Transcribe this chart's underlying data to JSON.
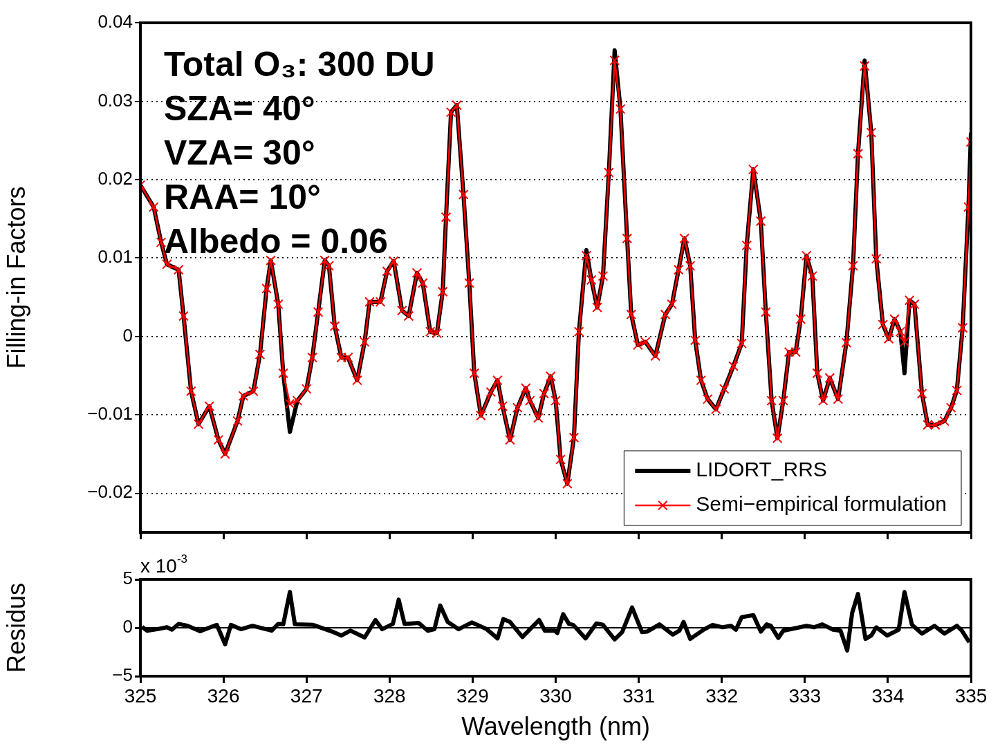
{
  "chart_data": [
    {
      "type": "line",
      "ylabel": "Filling-in Factors",
      "annotations": [
        "Total O₃: 300 DU",
        "SZA= 40°",
        "VZA= 30°",
        "RAA= 10°",
        "Albedo = 0.06"
      ],
      "x": [
        325.0,
        325.16,
        325.25,
        325.32,
        325.46,
        325.52,
        325.61,
        325.7,
        325.83,
        325.94,
        326.02,
        326.17,
        326.24,
        326.36,
        326.44,
        326.52,
        326.57,
        326.66,
        326.72,
        326.8,
        326.89,
        327.0,
        327.07,
        327.14,
        327.22,
        327.27,
        327.34,
        327.42,
        327.5,
        327.61,
        327.7,
        327.76,
        327.89,
        327.97,
        328.05,
        328.15,
        328.23,
        328.33,
        328.4,
        328.49,
        328.57,
        328.64,
        328.68,
        328.74,
        328.81,
        328.89,
        328.96,
        329.02,
        329.1,
        329.22,
        329.3,
        329.36,
        329.45,
        329.54,
        329.64,
        329.69,
        329.79,
        329.86,
        329.94,
        330.0,
        330.06,
        330.14,
        330.22,
        330.28,
        330.37,
        330.43,
        330.5,
        330.57,
        330.64,
        330.71,
        330.78,
        330.86,
        330.91,
        330.99,
        331.08,
        331.2,
        331.32,
        331.4,
        331.48,
        331.55,
        331.62,
        331.68,
        331.75,
        331.83,
        331.93,
        332.03,
        332.14,
        332.24,
        332.3,
        332.38,
        332.47,
        332.53,
        332.6,
        332.67,
        332.74,
        332.81,
        332.89,
        332.95,
        333.02,
        333.09,
        333.15,
        333.22,
        333.3,
        333.4,
        333.5,
        333.58,
        333.64,
        333.72,
        333.8,
        333.86,
        333.94,
        334.01,
        334.08,
        334.15,
        334.2,
        334.26,
        334.32,
        334.41,
        334.48,
        334.57,
        334.68,
        334.76,
        334.83,
        334.9,
        334.97,
        335.0
      ],
      "series": [
        {
          "name": "LIDORT_RRS",
          "color": "#000000",
          "marker": "none",
          "values": [
            0.0193,
            0.0165,
            0.012,
            0.0092,
            0.0085,
            0.0026,
            -0.007,
            -0.0112,
            -0.0089,
            -0.0132,
            -0.015,
            -0.0108,
            -0.0076,
            -0.007,
            -0.0023,
            0.0061,
            0.0097,
            0.0041,
            -0.0047,
            -0.0122,
            -0.0082,
            -0.0067,
            -0.0027,
            0.0031,
            0.0097,
            0.009,
            0.0013,
            -0.0027,
            -0.0027,
            -0.0056,
            -0.0007,
            0.0044,
            0.0044,
            0.0083,
            0.0096,
            0.0033,
            0.0026,
            0.0081,
            0.0068,
            0.0006,
            0.0004,
            0.0057,
            0.0152,
            0.0286,
            0.0295,
            0.0181,
            0.0068,
            -0.0047,
            -0.0101,
            -0.0071,
            -0.0056,
            -0.0089,
            -0.0132,
            -0.0091,
            -0.0066,
            -0.0082,
            -0.0104,
            -0.0073,
            -0.0051,
            -0.0082,
            -0.0157,
            -0.0188,
            -0.0129,
            0.0006,
            0.011,
            0.0072,
            0.0037,
            0.0077,
            0.0209,
            0.0365,
            0.029,
            0.0125,
            0.0028,
            -0.0011,
            -0.0007,
            -0.0025,
            0.0028,
            0.0041,
            0.0085,
            0.0125,
            0.009,
            -0.0005,
            -0.0056,
            -0.008,
            -0.0093,
            -0.0067,
            -0.0038,
            -0.0009,
            0.0116,
            0.0213,
            0.0147,
            0.0031,
            -0.0082,
            -0.013,
            -0.0082,
            -0.002,
            -0.002,
            0.0022,
            0.0103,
            0.0077,
            -0.0047,
            -0.0082,
            -0.0053,
            -0.008,
            -0.0008,
            0.009,
            0.0233,
            0.0352,
            0.026,
            0.0099,
            0.0015,
            -0.0003,
            0.0022,
            0.0006,
            -0.0047,
            0.0046,
            0.0041,
            -0.0073,
            -0.0113,
            -0.0113,
            -0.0108,
            -0.0091,
            -0.0069,
            0.0011,
            0.0165,
            0.026
          ]
        },
        {
          "name": "Semi−empirical formulation",
          "color": "#ff0000",
          "marker": "cross",
          "values": [
            0.0193,
            0.0165,
            0.012,
            0.0092,
            0.0085,
            0.0026,
            -0.007,
            -0.0112,
            -0.0089,
            -0.0132,
            -0.015,
            -0.0108,
            -0.0076,
            -0.007,
            -0.0023,
            0.0061,
            0.0097,
            0.0041,
            -0.0047,
            -0.0086,
            -0.0082,
            -0.0067,
            -0.0027,
            0.0031,
            0.0097,
            0.009,
            0.0013,
            -0.0027,
            -0.0027,
            -0.0056,
            -0.0007,
            0.0044,
            0.0044,
            0.0083,
            0.0096,
            0.0033,
            0.0026,
            0.0081,
            0.0068,
            0.0006,
            0.0004,
            0.0057,
            0.0152,
            0.0286,
            0.0295,
            0.0181,
            0.0068,
            -0.0047,
            -0.0101,
            -0.0071,
            -0.0056,
            -0.0089,
            -0.0132,
            -0.0091,
            -0.0066,
            -0.0082,
            -0.0104,
            -0.0073,
            -0.0051,
            -0.0082,
            -0.0157,
            -0.0188,
            -0.0129,
            0.0006,
            0.0103,
            0.0072,
            0.0037,
            0.0077,
            0.0209,
            0.0352,
            0.029,
            0.0125,
            0.0028,
            -0.0011,
            -0.0007,
            -0.0025,
            0.0028,
            0.0041,
            0.0085,
            0.0125,
            0.009,
            -0.0005,
            -0.0056,
            -0.008,
            -0.0093,
            -0.0067,
            -0.0038,
            -0.0009,
            0.0116,
            0.0213,
            0.0147,
            0.0031,
            -0.0082,
            -0.013,
            -0.0082,
            -0.002,
            -0.002,
            0.0022,
            0.0103,
            0.0077,
            -0.0047,
            -0.0082,
            -0.0053,
            -0.008,
            -0.0008,
            0.009,
            0.0233,
            0.0345,
            0.026,
            0.0099,
            0.0015,
            -0.0003,
            0.0022,
            0.0006,
            -0.0007,
            0.0046,
            0.0041,
            -0.0073,
            -0.0113,
            -0.0113,
            -0.0108,
            -0.0091,
            -0.0069,
            0.0011,
            0.0165,
            0.0248
          ]
        }
      ],
      "xlim": [
        325,
        335
      ],
      "xticks": [
        {
          "value": 325,
          "label": null
        },
        {
          "value": 326,
          "label": null
        },
        {
          "value": 327,
          "label": null
        },
        {
          "value": 328,
          "label": null
        },
        {
          "value": 329,
          "label": null
        },
        {
          "value": 330,
          "label": null
        },
        {
          "value": 331,
          "label": null
        },
        {
          "value": 332,
          "label": null
        },
        {
          "value": 333,
          "label": null
        },
        {
          "value": 334,
          "label": null
        },
        {
          "value": 335,
          "label": null
        }
      ],
      "ylim": [
        -0.025,
        0.04
      ],
      "yticks": [
        -0.02,
        -0.01,
        0,
        0.01,
        0.02,
        0.03,
        0.04
      ],
      "grid": "y",
      "legend": "bottom right",
      "line_style": "solid",
      "tick_labels": "y"
    },
    {
      "type": "line",
      "xlabel": "Wavelength (nm)",
      "ylabel": "Residus",
      "annotations": [
        "x 10$^{-3}$"
      ],
      "series": [
        {
          "color": "#000000",
          "marker": "none",
          "x": [
            325.02,
            325.08,
            325.2,
            325.32,
            325.38,
            325.46,
            325.57,
            325.72,
            325.92,
            326.02,
            326.09,
            326.21,
            326.35,
            326.58,
            326.66,
            326.72,
            326.8,
            326.86,
            327.08,
            327.31,
            327.42,
            327.53,
            327.7,
            327.83,
            327.91,
            328.04,
            328.11,
            328.18,
            328.35,
            328.46,
            328.54,
            328.61,
            328.7,
            328.83,
            328.99,
            329.17,
            329.3,
            329.37,
            329.45,
            329.6,
            329.8,
            329.87,
            329.99,
            330.02,
            330.09,
            330.16,
            330.21,
            330.36,
            330.49,
            330.57,
            330.71,
            330.8,
            330.92,
            331.04,
            331.1,
            331.25,
            331.41,
            331.49,
            331.54,
            331.62,
            331.79,
            331.89,
            332.01,
            332.11,
            332.17,
            332.24,
            332.38,
            332.47,
            332.54,
            332.59,
            332.68,
            332.74,
            333.02,
            333.11,
            333.21,
            333.34,
            333.43,
            333.51,
            333.57,
            333.64,
            333.73,
            333.8,
            333.86,
            333.99,
            334.13,
            334.2,
            334.29,
            334.41,
            334.56,
            334.68,
            334.83,
            334.89,
            334.98
          ],
          "values": [
            0.1,
            -0.3,
            -0.15,
            0.05,
            -0.2,
            0.4,
            0.2,
            -0.35,
            0.3,
            -1.7,
            0.3,
            -0.15,
            0.2,
            -0.3,
            0.4,
            0.35,
            3.7,
            0.35,
            0.3,
            -0.4,
            -0.8,
            -0.3,
            -1.0,
            0.8,
            -0.15,
            0.4,
            2.9,
            0.4,
            0.5,
            -0.3,
            -0.15,
            2.3,
            0.6,
            -0.15,
            0.55,
            -0.15,
            -1.1,
            0.9,
            0.6,
            -0.95,
            0.8,
            -0.3,
            -0.3,
            -0.55,
            1.4,
            0.4,
            0.3,
            -1.1,
            0.45,
            0.3,
            -1.2,
            -0.45,
            2.1,
            -0.45,
            -0.4,
            0.35,
            -0.7,
            -0.3,
            0.6,
            -1.15,
            -0.15,
            0.3,
            0.05,
            0.2,
            -0.2,
            1.1,
            1.3,
            -0.4,
            0.35,
            0.2,
            -1.05,
            -0.3,
            0.2,
            0.05,
            0.35,
            -0.2,
            -0.3,
            -2.35,
            1.55,
            3.5,
            -1.15,
            -0.8,
            0.05,
            -0.8,
            -0.2,
            3.7,
            0.3,
            -0.6,
            0.2,
            -0.6,
            0.2,
            -0.3,
            -1.5
          ]
        }
      ],
      "xlim": [
        325,
        335
      ],
      "xticks": [
        325,
        326,
        327,
        328,
        329,
        330,
        331,
        332,
        333,
        334,
        335
      ],
      "ylim": [
        -5,
        5
      ],
      "yticks": [
        -5,
        0,
        5
      ],
      "ref_lines": [
        {
          "axis": "y",
          "value": 0,
          "color": "#000000"
        }
      ],
      "grid": false,
      "legend": false,
      "line_style": "solid"
    }
  ]
}
